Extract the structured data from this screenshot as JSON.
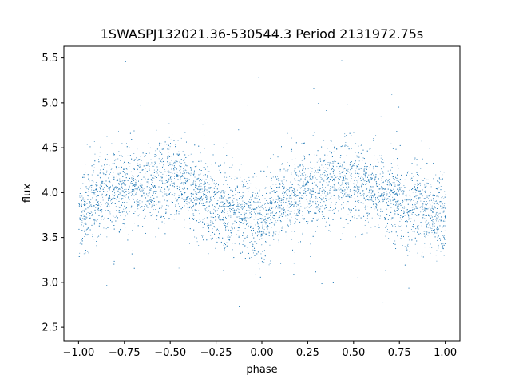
{
  "chart_data": {
    "type": "scatter",
    "title": "1SWASPJ132021.36-530544.3 Period 2131972.75s",
    "xlabel": "phase",
    "ylabel": "flux",
    "xlim": [
      -1.08,
      1.08
    ],
    "ylim": [
      2.35,
      5.63
    ],
    "xticks": [
      -1.0,
      -0.75,
      -0.5,
      -0.25,
      0.0,
      0.25,
      0.5,
      0.75,
      1.0
    ],
    "xtick_labels": [
      "−1.00",
      "−0.75",
      "−0.50",
      "−0.25",
      "0.00",
      "0.25",
      "0.50",
      "0.75",
      "1.00"
    ],
    "yticks": [
      2.5,
      3.0,
      3.5,
      4.0,
      4.5,
      5.0,
      5.5
    ],
    "ytick_labels": [
      "2.5",
      "3.0",
      "3.5",
      "4.0",
      "4.5",
      "5.0",
      "5.5"
    ],
    "grid": false,
    "marker_color": "#1f77b4",
    "phase_range": [
      -1.0,
      1.0
    ],
    "flux_mean_curve": {
      "phase": [
        -1.0,
        -0.9,
        -0.75,
        -0.6,
        -0.5,
        -0.4,
        -0.25,
        -0.1,
        0.0,
        0.1,
        0.25,
        0.4,
        0.5,
        0.6,
        0.75,
        0.9,
        1.0
      ],
      "flux": [
        3.72,
        3.95,
        4.05,
        4.12,
        4.18,
        4.05,
        3.85,
        3.75,
        3.68,
        3.9,
        4.02,
        4.1,
        4.18,
        4.05,
        3.9,
        3.78,
        3.7
      ]
    },
    "flux_scatter_sigma": 0.22,
    "flux_min": 2.5,
    "flux_max": 5.5,
    "n_points": 9000
  }
}
